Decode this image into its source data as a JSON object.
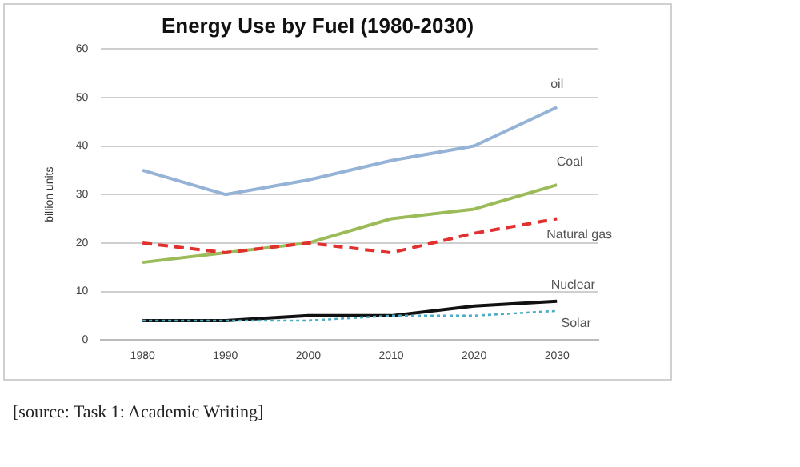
{
  "chart_data": {
    "type": "line",
    "title": "Energy Use by Fuel (1980-2030)",
    "ylabel": "billion units",
    "categories": [
      "1980",
      "1990",
      "2000",
      "2010",
      "2020",
      "2030"
    ],
    "series": [
      {
        "name": "oil",
        "color": "#95b3d7",
        "values": [
          35,
          30,
          33,
          37,
          40,
          48
        ],
        "line_style": "solid"
      },
      {
        "name": "Coal",
        "color": "#9bbb59",
        "values": [
          16,
          18,
          20,
          25,
          27,
          32
        ],
        "line_style": "solid"
      },
      {
        "name": "Natural gas",
        "color": "#e0312f",
        "values": [
          20,
          18,
          20,
          18,
          22,
          25
        ],
        "line_style": "dashed"
      },
      {
        "name": "Nuclear",
        "color": "#111111",
        "values": [
          4,
          4,
          5,
          5,
          7,
          8
        ],
        "line_style": "solid"
      },
      {
        "name": "Solar",
        "color": "#4bacc6",
        "values": [
          4,
          4,
          4,
          5,
          5,
          6
        ],
        "line_style": "dotted"
      }
    ],
    "ylim": [
      0,
      60
    ],
    "yticks": [
      0,
      10,
      20,
      30,
      40,
      50,
      60
    ],
    "grid": "y",
    "legend": false,
    "marker": "none",
    "annotations": [
      "[source: Task 1: Academic Writing]"
    ]
  }
}
